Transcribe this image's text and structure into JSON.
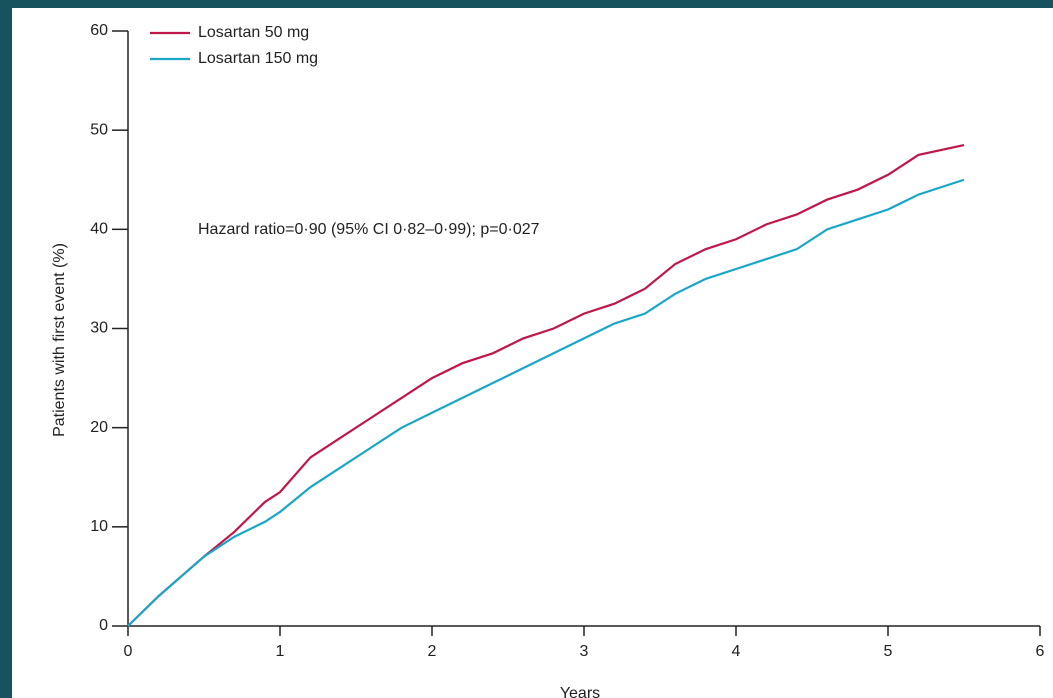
{
  "chart_data": {
    "type": "line",
    "annotation": "Hazard ratio=0·90 (95% CI 0·82–0·99); p=0·027",
    "x_label": "Years",
    "y_label": "Patients with first event (%)",
    "x": [
      0,
      0.2,
      0.5,
      0.7,
      0.9,
      1.0,
      1.2,
      1.4,
      1.6,
      1.8,
      2.0,
      2.2,
      2.4,
      2.6,
      2.8,
      3.0,
      3.2,
      3.4,
      3.6,
      3.8,
      4.0,
      4.2,
      4.4,
      4.6,
      4.8,
      5.0,
      5.2,
      5.5
    ],
    "series": [
      {
        "name": "Losartan 50 mg",
        "color": "#c0174b",
        "values": [
          0,
          3,
          7,
          9.5,
          12.5,
          13.5,
          17,
          19,
          21,
          23,
          25,
          26.5,
          27.5,
          29,
          30,
          31.5,
          32.5,
          34,
          36.5,
          38,
          39,
          40.5,
          41.5,
          43,
          44,
          45.5,
          47.5,
          48.5
        ]
      },
      {
        "name": "Losartan 150 mg",
        "color": "#1aa6c8",
        "values": [
          0,
          3,
          7,
          9,
          10.5,
          11.5,
          14,
          16,
          18,
          20,
          21.5,
          23,
          24.5,
          26,
          27.5,
          29,
          30.5,
          31.5,
          33.5,
          35,
          36,
          37,
          38,
          40,
          41,
          42,
          43.5,
          45
        ]
      }
    ],
    "xlim": [
      0,
      6
    ],
    "xticks": [
      0,
      1,
      2,
      3,
      4,
      5,
      6
    ],
    "ylim": [
      0,
      60
    ],
    "yticks": [
      0,
      10,
      20,
      30,
      40,
      50,
      60
    ],
    "legend": "top-left"
  }
}
